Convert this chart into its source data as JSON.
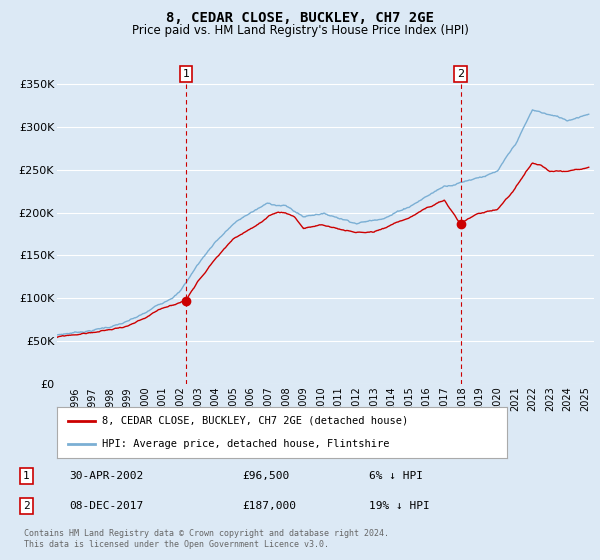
{
  "title": "8, CEDAR CLOSE, BUCKLEY, CH7 2GE",
  "subtitle": "Price paid vs. HM Land Registry's House Price Index (HPI)",
  "title_fontsize": 10,
  "subtitle_fontsize": 8.5,
  "ylabel_ticks": [
    "£0",
    "£50K",
    "£100K",
    "£150K",
    "£200K",
    "£250K",
    "£300K",
    "£350K"
  ],
  "ytick_values": [
    0,
    50000,
    100000,
    150000,
    200000,
    250000,
    300000,
    350000
  ],
  "ylim": [
    0,
    370000
  ],
  "xlim_start": 1995.0,
  "xlim_end": 2025.5,
  "background_color": "#dce9f5",
  "plot_bg_color": "#dce9f5",
  "grid_color": "#ffffff",
  "hpi_line_color": "#7bafd4",
  "price_line_color": "#cc0000",
  "sale1_date": 2002.33,
  "sale1_price": 96500,
  "sale2_date": 2017.92,
  "sale2_price": 187000,
  "annotation1_label": "1",
  "annotation2_label": "2",
  "legend_entry1": "8, CEDAR CLOSE, BUCKLEY, CH7 2GE (detached house)",
  "legend_entry2": "HPI: Average price, detached house, Flintshire",
  "table_row1": [
    "1",
    "30-APR-2002",
    "£96,500",
    "6% ↓ HPI"
  ],
  "table_row2": [
    "2",
    "08-DEC-2017",
    "£187,000",
    "19% ↓ HPI"
  ],
  "footer": "Contains HM Land Registry data © Crown copyright and database right 2024.\nThis data is licensed under the Open Government Licence v3.0.",
  "xtick_years": [
    1996,
    1997,
    1998,
    1999,
    2000,
    2001,
    2002,
    2003,
    2004,
    2005,
    2006,
    2007,
    2008,
    2009,
    2010,
    2011,
    2012,
    2013,
    2014,
    2015,
    2016,
    2017,
    2018,
    2019,
    2020,
    2021,
    2022,
    2023,
    2024,
    2025
  ]
}
